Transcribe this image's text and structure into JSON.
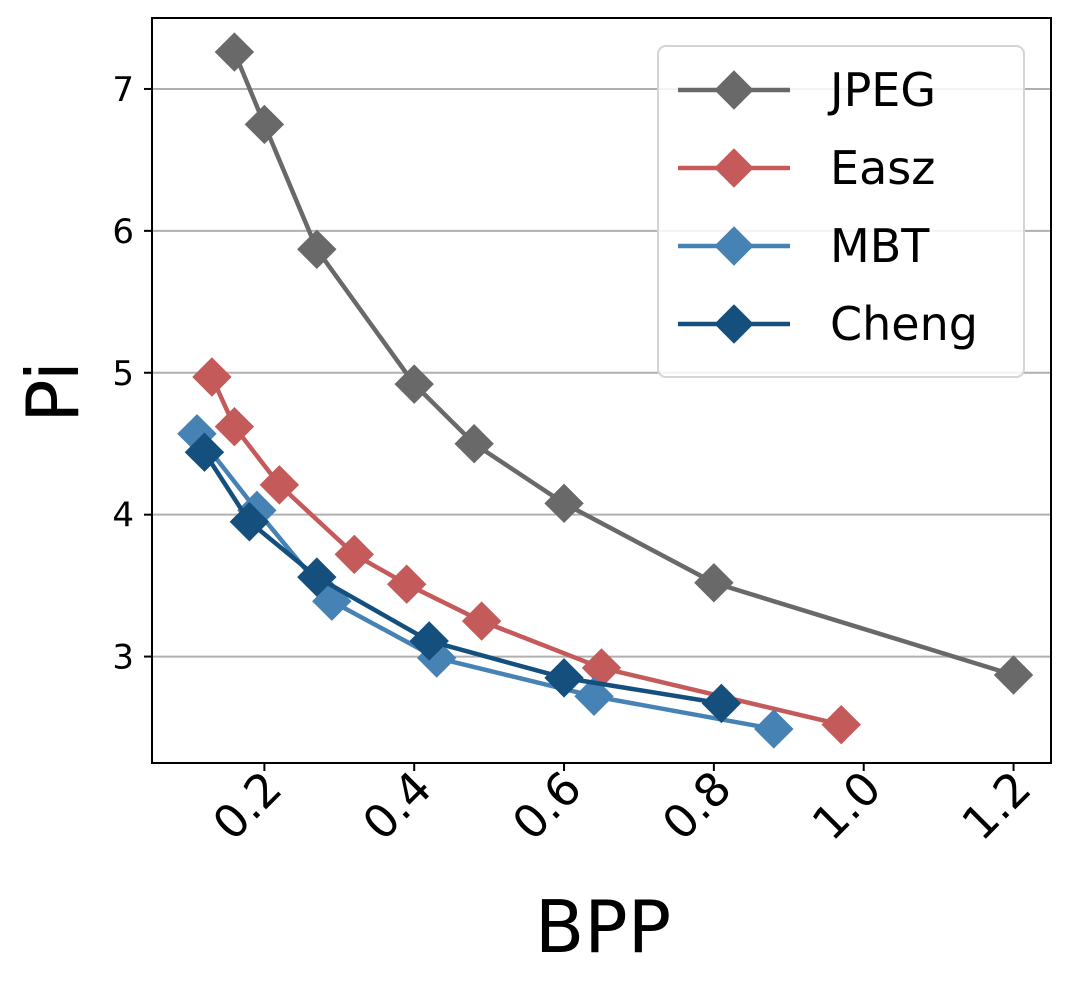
{
  "chart_data": {
    "type": "line",
    "title": "",
    "xlabel": "BPP",
    "ylabel": "Pi",
    "xlim": [
      0.05,
      1.25
    ],
    "ylim": [
      2.25,
      7.5
    ],
    "xticks": [
      0.2,
      0.4,
      0.6,
      0.8,
      1.0,
      1.2
    ],
    "xtick_labels": [
      "0.2",
      "0.4",
      "0.6",
      "0.8",
      "1.0",
      "1.2"
    ],
    "yticks": [
      3,
      4,
      5,
      6,
      7
    ],
    "ytick_labels": [
      "3",
      "4",
      "5",
      "6",
      "7"
    ],
    "grid": "horizontal",
    "legend_position": "top-right",
    "marker": "diamond",
    "series": [
      {
        "name": "JPEG",
        "color": "#696969",
        "x": [
          0.16,
          0.2,
          0.27,
          0.4,
          0.48,
          0.6,
          0.8,
          1.2
        ],
        "y": [
          7.26,
          6.75,
          5.87,
          4.92,
          4.5,
          4.08,
          3.52,
          2.87
        ]
      },
      {
        "name": "Easz",
        "color": "#c55a5a",
        "x": [
          0.13,
          0.16,
          0.22,
          0.32,
          0.39,
          0.49,
          0.65,
          0.97
        ],
        "y": [
          4.97,
          4.62,
          4.21,
          3.72,
          3.51,
          3.25,
          2.92,
          2.52
        ]
      },
      {
        "name": "MBT",
        "color": "#4682b4",
        "x": [
          0.11,
          0.19,
          0.29,
          0.43,
          0.64,
          0.88
        ],
        "y": [
          4.57,
          4.03,
          3.39,
          2.99,
          2.72,
          2.49
        ]
      },
      {
        "name": "Cheng",
        "color": "#154f7e",
        "x": [
          0.12,
          0.18,
          0.27,
          0.42,
          0.6,
          0.81
        ],
        "y": [
          4.44,
          3.95,
          3.56,
          3.11,
          2.85,
          2.67
        ]
      }
    ]
  }
}
